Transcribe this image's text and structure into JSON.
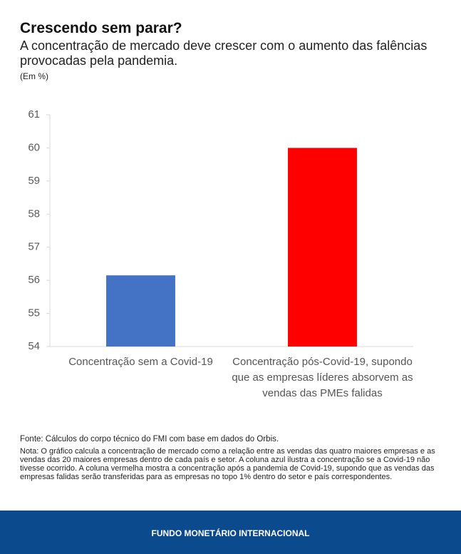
{
  "chart_data": {
    "type": "bar",
    "title": "Crescendo sem parar?",
    "subtitle": "A concentração de mercado deve crescer com o aumento das falências provocadas pela pandemia.",
    "unit": "(Em %)",
    "categories": [
      "Concentração sem a Covid-19",
      "Concentração pós-Covid-19, supondo que as empresas líderes absorvem as vendas das PMEs falidas"
    ],
    "values": [
      56.15,
      60
    ],
    "colors": [
      "#4472c4",
      "#ff0000"
    ],
    "ylim": [
      54,
      61
    ],
    "yticks": [
      54,
      55,
      56,
      57,
      58,
      59,
      60,
      61
    ],
    "grid": false,
    "source": "Fonte: Cálculos do corpo técnico do FMI com base em dados do Orbis.",
    "note": "Nota: O gráfico calcula a concentração de mercado como a relação entre as vendas das quatro maiores empresas e as vendas das 20 maiores empresas dentro de cada país e setor. A coluna azul ilustra a concentração se a Covid-19 não tivesse ocorrido. A coluna vermelha mostra a concentração após a pandemia de Covid-19, supondo que as vendas das empresas falidas serão transferidas para as empresas no topo 1% dentro do setor e país correspondentes.",
    "footer": "FUNDO MONETÁRIO INTERNACIONAL"
  }
}
